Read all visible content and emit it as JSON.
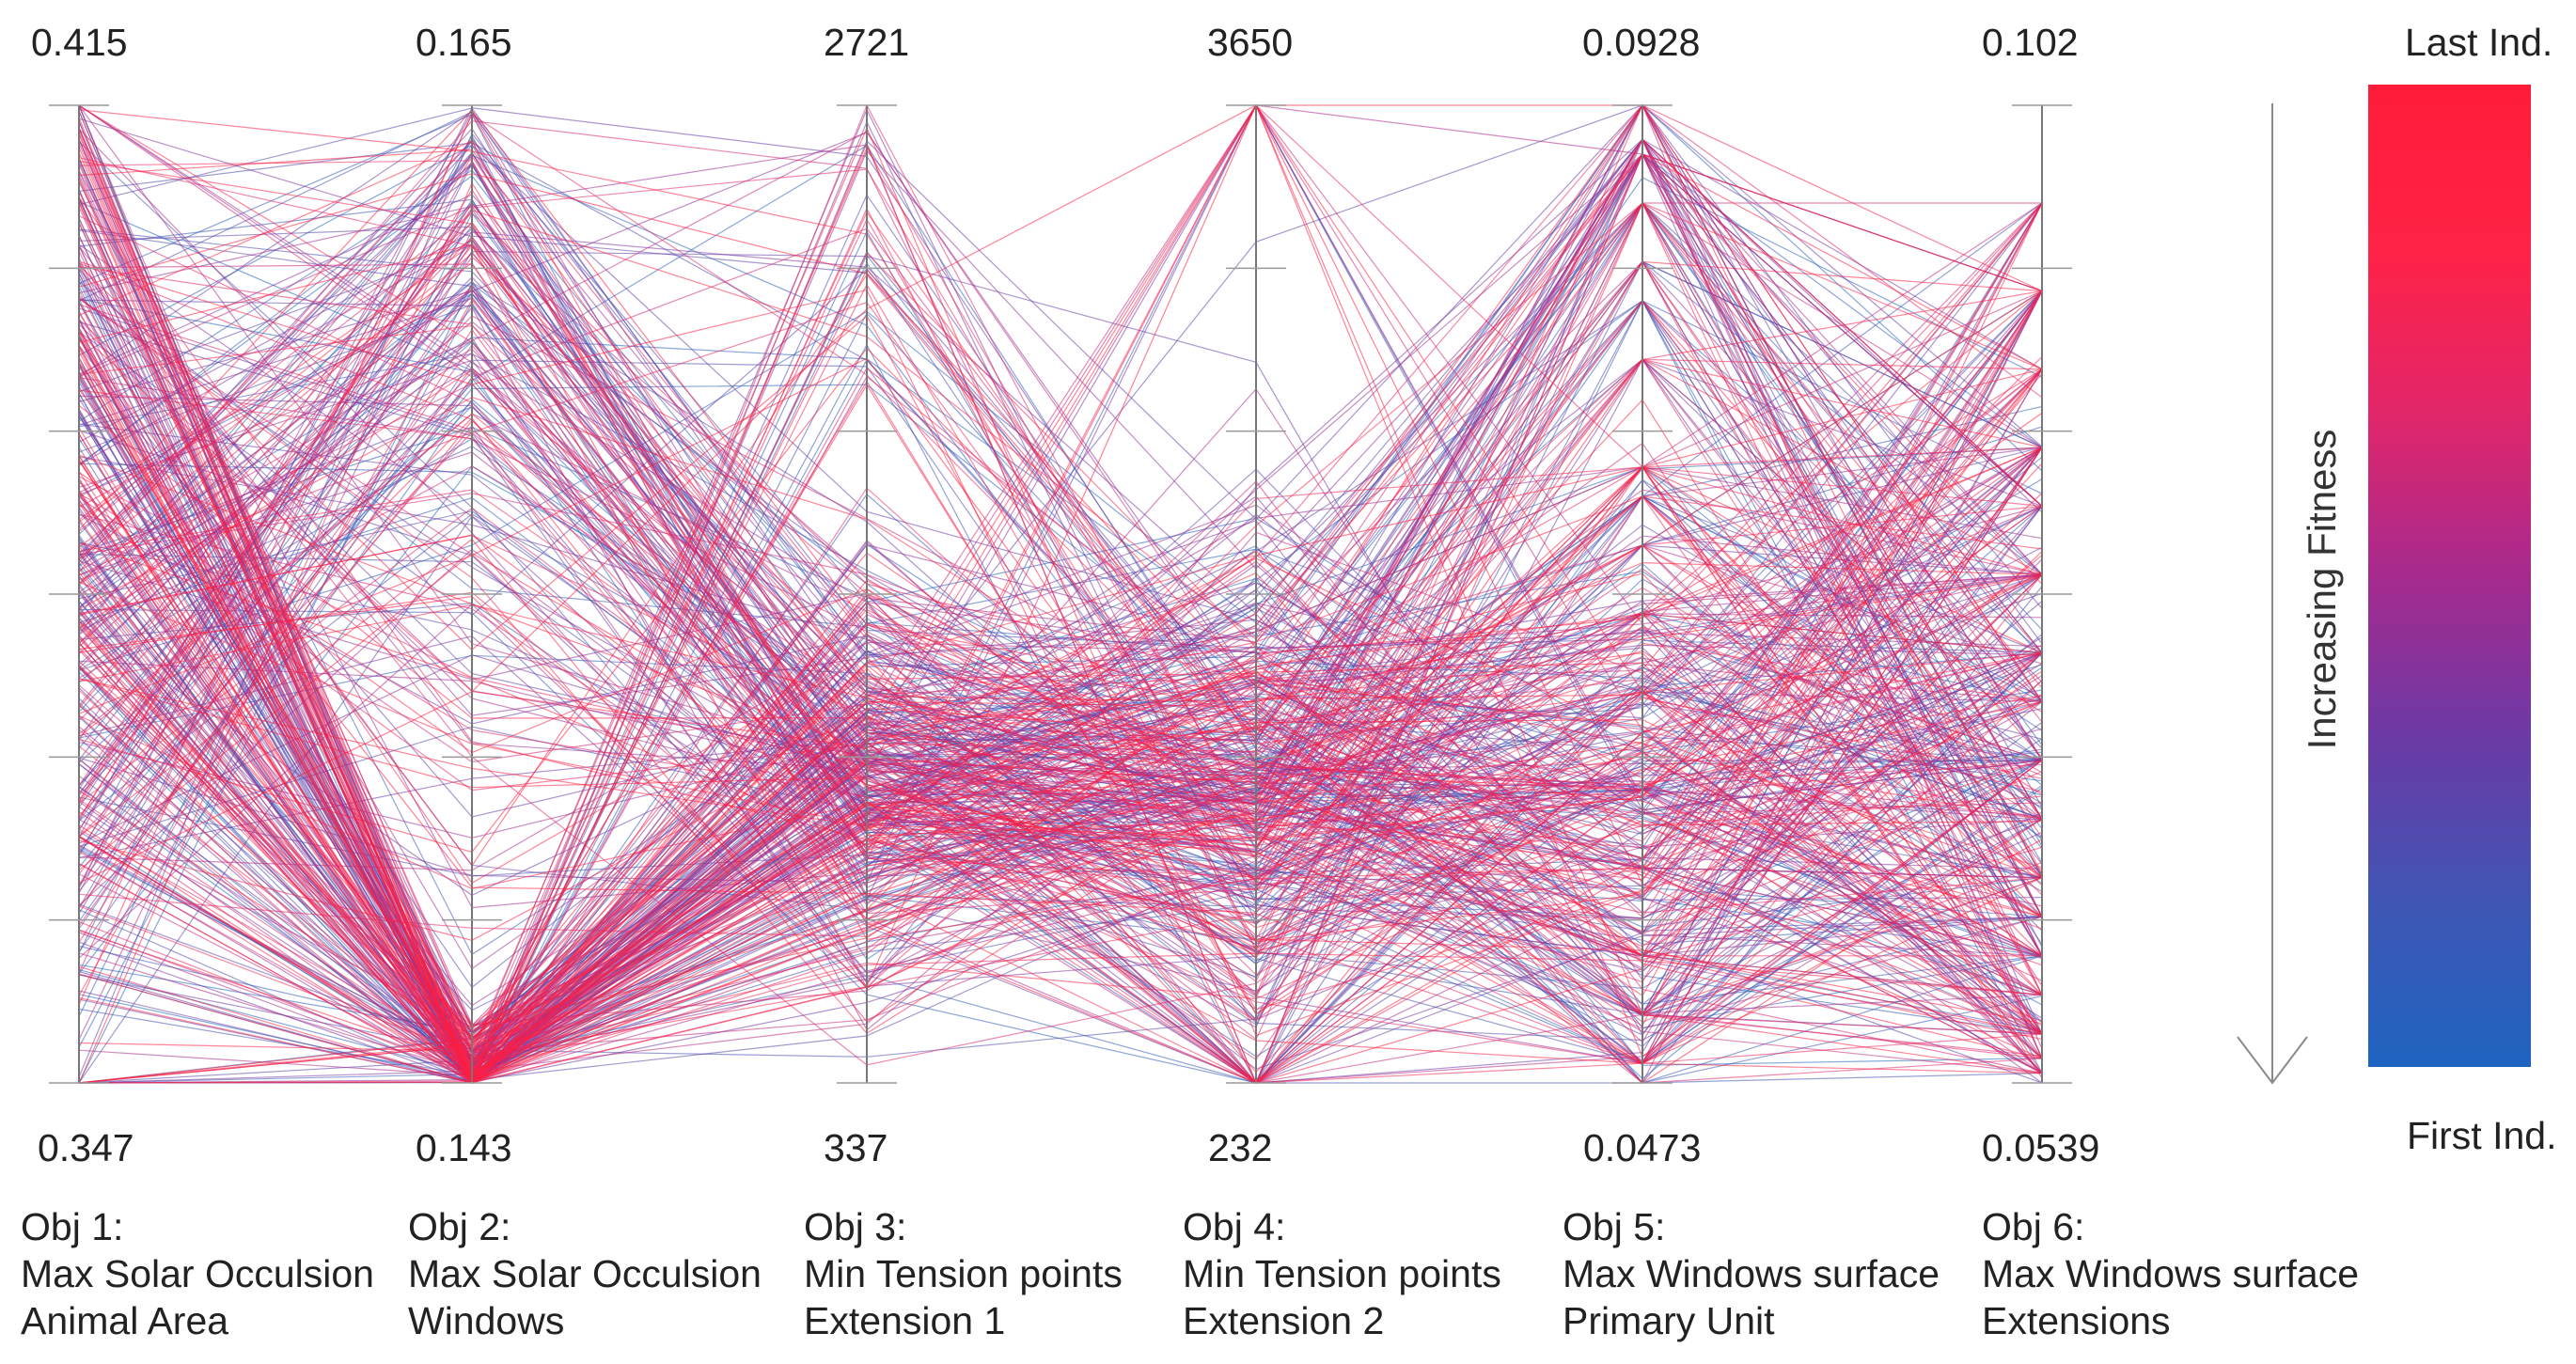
{
  "chart_data": {
    "type": "parallel-coordinates",
    "title": "",
    "axes": [
      {
        "name_line1": "Obj 1:",
        "name_line2": "Max Solar Occulsion",
        "name_line3": "Animal Area",
        "max": "0.415",
        "min": "0.347"
      },
      {
        "name_line1": "Obj 2:",
        "name_line2": "Max Solar Occulsion",
        "name_line3": "Windows",
        "max": "0.165",
        "min": "0.143"
      },
      {
        "name_line1": "Obj 3:",
        "name_line2": "Min Tension points",
        "name_line3": "Extension 1",
        "max": "2721",
        "min": "337"
      },
      {
        "name_line1": "Obj 4:",
        "name_line2": "Min Tension points",
        "name_line3": "Extension 2",
        "max": "3650",
        "min": "232"
      },
      {
        "name_line1": "Obj 5:",
        "name_line2": "Max Windows surface",
        "name_line3": "Primary Unit",
        "max": "0.0928",
        "min": "0.0473"
      },
      {
        "name_line1": "Obj 6:",
        "name_line2": "Max Windows surface",
        "name_line3": "Extensions",
        "max": "0.102",
        "min": "0.0539"
      }
    ],
    "series_count_estimate": 500,
    "fitness_direction": "down",
    "fitness_label": "Increasing Fitness",
    "legend": {
      "top_label": "Last Ind.",
      "bottom_label": "First Ind.",
      "colors": [
        "#ff1c3a",
        "#ff2246",
        "#e2266a",
        "#a62a8e",
        "#6b3aa6",
        "#3f56b4",
        "#1e63c0"
      ]
    }
  }
}
